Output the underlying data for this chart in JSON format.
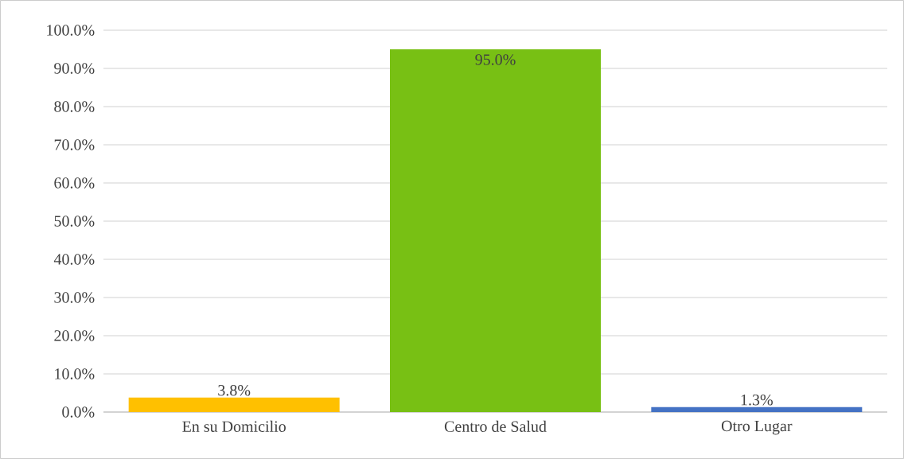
{
  "chart_data": {
    "type": "bar",
    "categories": [
      "En su Domicilio",
      "Centro de Salud",
      "Otro Lugar"
    ],
    "values": [
      3.8,
      95.0,
      1.3
    ],
    "colors": [
      "#ffc000",
      "#78c014",
      "#4472c4"
    ],
    "value_labels": [
      "3.8%",
      "95.0%",
      "1.3%"
    ],
    "ylim": [
      0,
      100
    ],
    "yticks": [
      {
        "value": 0,
        "label": "0.0%"
      },
      {
        "value": 10,
        "label": "10.0%"
      },
      {
        "value": 20,
        "label": "20.0%"
      },
      {
        "value": 30,
        "label": "30.0%"
      },
      {
        "value": 40,
        "label": "40.0%"
      },
      {
        "value": 50,
        "label": "50.0%"
      },
      {
        "value": 60,
        "label": "60.0%"
      },
      {
        "value": 70,
        "label": "70.0%"
      },
      {
        "value": 80,
        "label": "80.0%"
      },
      {
        "value": 90,
        "label": "90.0%"
      },
      {
        "value": 100,
        "label": "100.0%"
      }
    ],
    "grid": "y"
  }
}
